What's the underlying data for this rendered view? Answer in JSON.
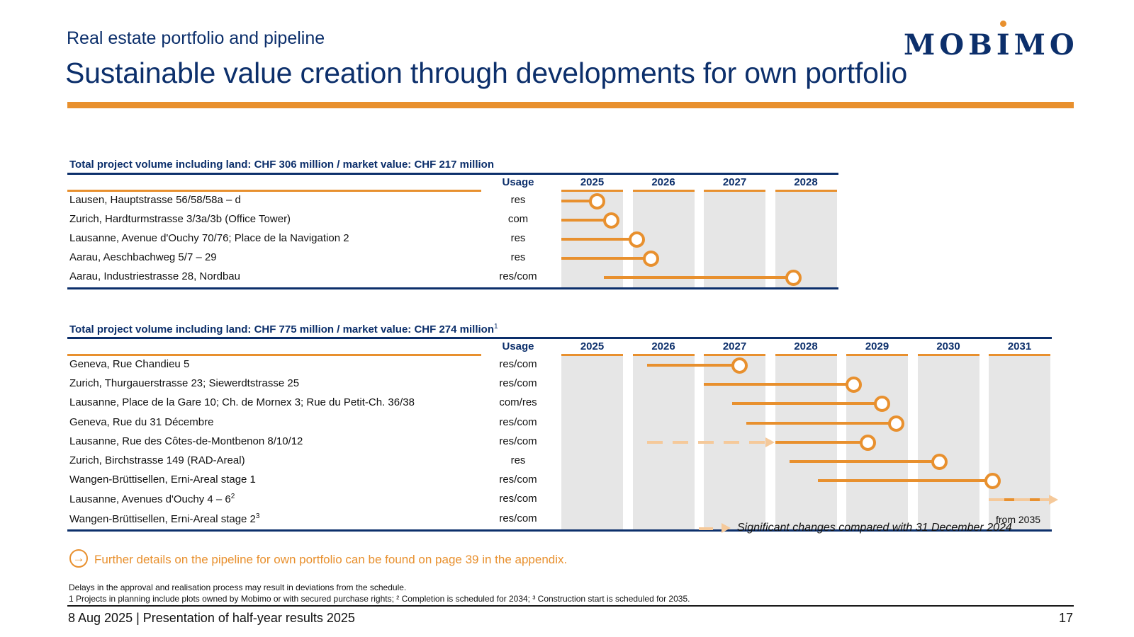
{
  "header": {
    "subtitle": "Real estate portfolio and pipeline",
    "title": "Sustainable value creation through developments for own portfolio",
    "logo_text": "MOBIMO"
  },
  "table1": {
    "title": "Total project volume including land: CHF 306 million / market value: CHF 217 million",
    "usage_header": "Usage",
    "years": [
      "2025",
      "2026",
      "2027",
      "2028"
    ],
    "rows": [
      {
        "name": "Lausen, Hauptstrasse 56/58/58a – d",
        "usage": "res",
        "start_year": 2025.0,
        "end_year": 2025.5
      },
      {
        "name": "Zurich, Hardturmstrasse 3/3a/3b (Office Tower)",
        "usage": "com",
        "start_year": 2025.0,
        "end_year": 2025.7
      },
      {
        "name": "Lausanne, Avenue d'Ouchy 70/76; Place de la Navigation 2",
        "usage": "res",
        "start_year": 2025.0,
        "end_year": 2026.05
      },
      {
        "name": "Aarau, Aeschbachweg 5/7 – 29",
        "usage": "res",
        "start_year": 2025.0,
        "end_year": 2026.25
      },
      {
        "name": "Aarau, Industriestrasse 28, Nordbau",
        "usage": "res/com",
        "start_year": 2025.6,
        "end_year": 2028.25
      }
    ]
  },
  "table2": {
    "title": "Total project volume including land: CHF 775 million / market value: CHF 274 million",
    "title_footnote": "1",
    "usage_header": "Usage",
    "years": [
      "2025",
      "2026",
      "2027",
      "2028",
      "2029",
      "2030",
      "2031"
    ],
    "rows": [
      {
        "name": "Geneva, Rue Chandieu 5",
        "sup": "",
        "usage": "res/com",
        "start_year": 2026.2,
        "end_year": 2027.5
      },
      {
        "name": "Zurich, Thurgauerstrasse 23; Siewerdtstrasse 25",
        "sup": "",
        "usage": "res/com",
        "start_year": 2027.0,
        "end_year": 2029.1
      },
      {
        "name": "Lausanne, Place de la Gare 10; Ch. de Mornex 3; Rue du Petit-Ch. 36/38",
        "sup": "",
        "usage": "com/res",
        "start_year": 2027.4,
        "end_year": 2029.5
      },
      {
        "name": "Geneva, Rue du 31 Décembre",
        "sup": "",
        "usage": "res/com",
        "start_year": 2027.6,
        "end_year": 2029.7
      },
      {
        "name": "Lausanne, Rue des Côtes-de-Montbenon 8/10/12",
        "sup": "",
        "usage": "res/com",
        "start_year": 2028.0,
        "end_year": 2029.3,
        "changed_from_year": 2026.2
      },
      {
        "name": "Zurich, Birchstrasse 149 (RAD-Areal)",
        "sup": "",
        "usage": "res",
        "start_year": 2028.2,
        "end_year": 2030.3
      },
      {
        "name": "Wangen-Brüttisellen, Erni-Areal stage 1",
        "sup": "",
        "usage": "res/com",
        "start_year": 2028.6,
        "end_year": 2031.05
      },
      {
        "name": "Lausanne, Avenues d'Ouchy 4 – 6",
        "sup": "2",
        "usage": "res/com",
        "start_year": 2031.0,
        "end_year": 2031.85,
        "dashed_arrow": true
      },
      {
        "name": "Wangen-Brüttisellen, Erni-Areal stage 2",
        "sup": "3",
        "usage": "res/com",
        "note_label": "from 2035"
      }
    ]
  },
  "legend": {
    "text": "Significant changes compared with 31 December 2024"
  },
  "further": {
    "icon": "arrow-circle-icon",
    "text": "Further details on the pipeline for own portfolio can be found on page 39 in the appendix."
  },
  "notes": {
    "line1": "Delays in the approval and realisation process may result in deviations from the schedule.",
    "line2": "1  Projects in planning include plots owned by Mobimo or with secured purchase rights; ² Completion is scheduled for 2034; ³ Construction start is scheduled for 2035."
  },
  "footer": {
    "left": "8 Aug 2025 | Presentation of half-year results 2025",
    "page_number": "17"
  },
  "colors": {
    "navy": "#0c2f6b",
    "orange": "#e8902e",
    "light_orange": "#f5c99a",
    "column_grey": "#e6e6e6"
  }
}
